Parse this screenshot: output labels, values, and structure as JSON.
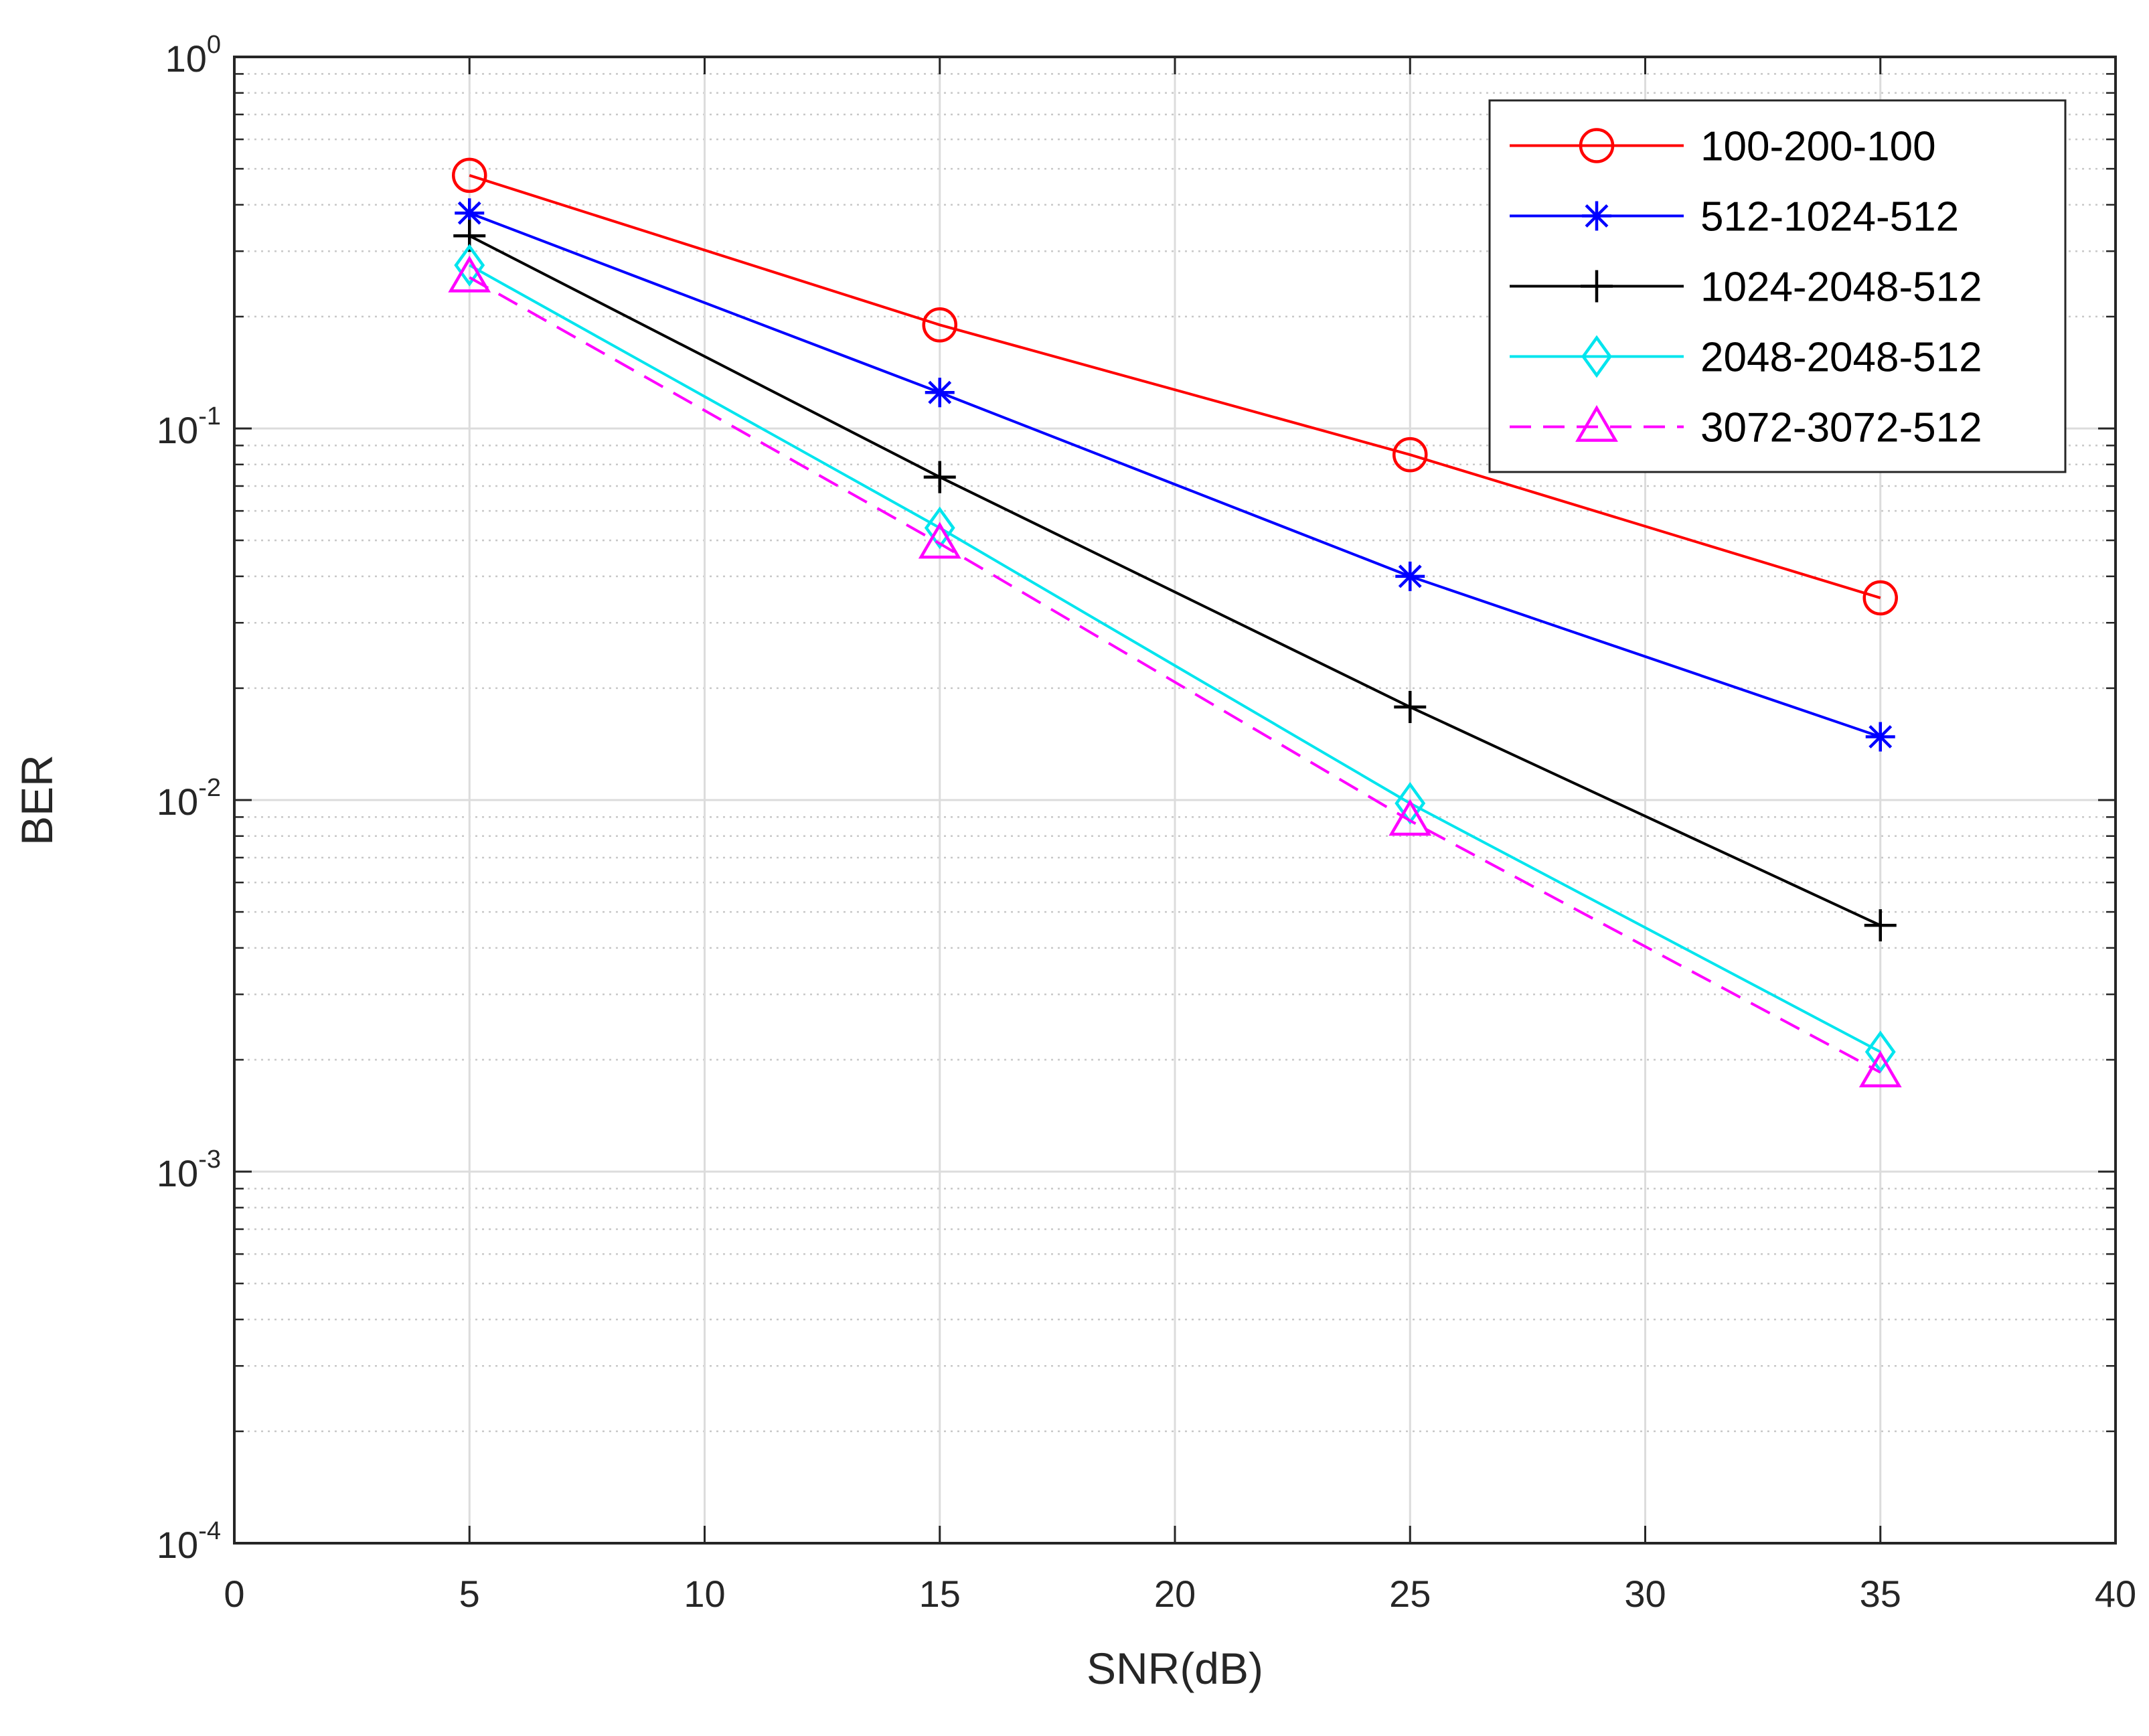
{
  "chart_data": {
    "type": "line",
    "title": "",
    "xlabel": "SNR(dB)",
    "ylabel": "BER",
    "yscale": "log",
    "xlim": [
      0,
      40
    ],
    "ylim": [
      0.0001,
      1
    ],
    "xticks": [
      0,
      5,
      10,
      15,
      20,
      25,
      30,
      35,
      40
    ],
    "xtick_labels": [
      "0",
      "5",
      "10",
      "15",
      "20",
      "25",
      "30",
      "35",
      "40"
    ],
    "yticks": [
      {
        "value": 1,
        "base": "10",
        "exp": "0"
      },
      {
        "value": 0.1,
        "base": "10",
        "exp": "-1"
      },
      {
        "value": 0.01,
        "base": "10",
        "exp": "-2"
      },
      {
        "value": 0.001,
        "base": "10",
        "exp": "-3"
      },
      {
        "value": 0.0001,
        "base": "10",
        "exp": "-4"
      }
    ],
    "grid": true,
    "minor_grid": true,
    "legend_position": "top-right",
    "x": [
      5,
      15,
      25,
      35
    ],
    "series": [
      {
        "name": "100-200-100",
        "color": "#ff0000",
        "marker": "circle",
        "dash": "solid",
        "values": [
          0.48,
          0.19,
          0.085,
          0.035
        ]
      },
      {
        "name": "512-1024-512",
        "color": "#0000ff",
        "marker": "asterisk",
        "dash": "solid",
        "values": [
          0.38,
          0.125,
          0.04,
          0.0148
        ]
      },
      {
        "name": "1024-2048-512",
        "color": "#000000",
        "marker": "plus",
        "dash": "solid",
        "values": [
          0.33,
          0.074,
          0.0178,
          0.0046
        ]
      },
      {
        "name": "2048-2048-512",
        "color": "#00e5ee",
        "marker": "diamond",
        "dash": "solid",
        "values": [
          0.275,
          0.054,
          0.0098,
          0.0021
        ]
      },
      {
        "name": "3072-3072-512",
        "color": "#ff00ff",
        "marker": "triangle",
        "dash": "dashed",
        "values": [
          0.255,
          0.049,
          0.0088,
          0.00185
        ]
      }
    ]
  }
}
